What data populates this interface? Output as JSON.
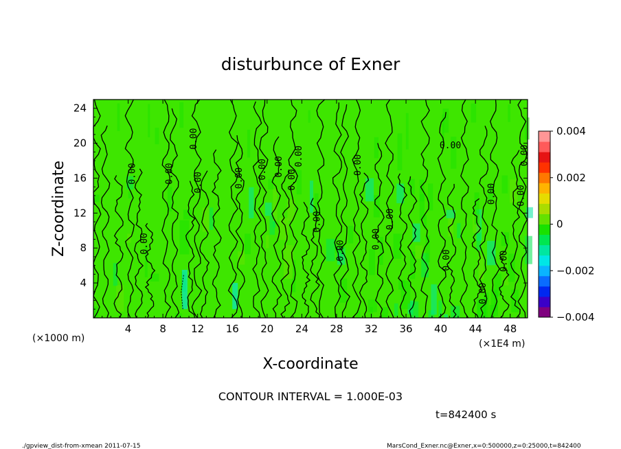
{
  "chart_data": {
    "type": "heatmap",
    "title": "disturbunce of Exner",
    "xlabel": "X-coordinate",
    "ylabel": "Z-coordinate",
    "x_unit_label": "(×1000 m)",
    "x_scale_label": "(×1E4 m)",
    "xlim": [
      0,
      50
    ],
    "ylim": [
      0,
      25
    ],
    "x_ticks": [
      "4",
      "8",
      "12",
      "16",
      "20",
      "24",
      "28",
      "32",
      "36",
      "40",
      "44",
      "48"
    ],
    "y_ticks": [
      "4",
      "8",
      "12",
      "16",
      "20",
      "24"
    ],
    "colorbar": {
      "range": [
        -0.004,
        0.004
      ],
      "tick_labels": [
        "0.004",
        "0.002",
        "0",
        "−0.002",
        "−0.004"
      ],
      "colors": [
        "#7f007f",
        "#3a00c8",
        "#0028f0",
        "#0a6cff",
        "#0ab4ff",
        "#00e6e6",
        "#00e6a0",
        "#00e650",
        "#19e100",
        "#64e100",
        "#aadc00",
        "#e6dc00",
        "#ffb400",
        "#ff7800",
        "#ff3200",
        "#e61414",
        "#ff5a5a",
        "#ff9696"
      ]
    },
    "contour_interval": "CONTOUR INTERVAL = 1.000E-03",
    "contour_labels": [
      {
        "text": "0.00",
        "x": 4.5,
        "y": 16.5,
        "rot": -90
      },
      {
        "text": "0.00",
        "x": 5.9,
        "y": 8.5,
        "rot": -90
      },
      {
        "text": "0.00",
        "x": 8.8,
        "y": 16.5,
        "rot": -90
      },
      {
        "text": "0.00",
        "x": 11.6,
        "y": 20.5,
        "rot": -90
      },
      {
        "text": "0.00",
        "x": 12.1,
        "y": 15.5,
        "rot": -90
      },
      {
        "text": "0.00",
        "x": 16.8,
        "y": 16,
        "rot": -90
      },
      {
        "text": "0.00",
        "x": 19.5,
        "y": 17,
        "rot": -90
      },
      {
        "text": "0.00",
        "x": 21.4,
        "y": 17.3,
        "rot": -90
      },
      {
        "text": "0.00",
        "x": 22.9,
        "y": 15.8,
        "rot": -90
      },
      {
        "text": "0.00",
        "x": 23.7,
        "y": 18.5,
        "rot": -90
      },
      {
        "text": "0.00",
        "x": 25.8,
        "y": 11,
        "rot": -90
      },
      {
        "text": "0.00",
        "x": 28.5,
        "y": 7.7,
        "rot": -90
      },
      {
        "text": "0.00",
        "x": 30.5,
        "y": 17.5,
        "rot": -90
      },
      {
        "text": "0.00",
        "x": 32.6,
        "y": 9,
        "rot": -90
      },
      {
        "text": "0.00",
        "x": 34.2,
        "y": 11.3,
        "rot": -90
      },
      {
        "text": "0.00",
        "x": 40.7,
        "y": 6.6,
        "rot": -90
      },
      {
        "text": "0.00",
        "x": 41.1,
        "y": 19.7,
        "rot": 0
      },
      {
        "text": "0.00",
        "x": 44.9,
        "y": 2.8,
        "rot": -90
      },
      {
        "text": "0.00",
        "x": 45.9,
        "y": 14.2,
        "rot": -90
      },
      {
        "text": "0.00",
        "x": 47.3,
        "y": 6.5,
        "rot": -90
      },
      {
        "text": "0.00",
        "x": 49.3,
        "y": 14,
        "rot": -90
      },
      {
        "text": "0.00",
        "x": 49.7,
        "y": 18.6,
        "rot": -90
      }
    ]
  },
  "footer": {
    "time": "t=842400 s",
    "left": "./gpview_dist-from-xmean  2011-07-15",
    "right": "MarsCond_Exner.nc@Exner,x=0:500000,z=0:25000,t=842400"
  }
}
